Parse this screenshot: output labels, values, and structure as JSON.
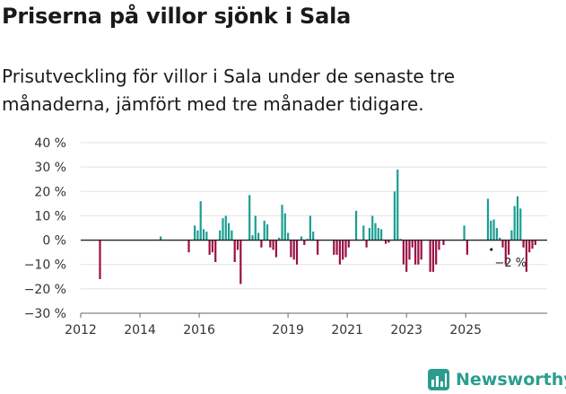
{
  "header": {
    "title": "Priserna på villor sjönk i Sala",
    "subtitle": "Prisutveckling för villor i Sala under de senaste tre månaderna, jämfört med tre månader tidigare."
  },
  "brand": {
    "name": "Newsworthy"
  },
  "colors": {
    "positive": "#1a9e92",
    "negative": "#9c0e44",
    "grid": "#e2e2e2",
    "zero": "#222222"
  },
  "chart_data": {
    "type": "bar",
    "title": "Priserna på villor sjönk i Sala",
    "ylabel": "",
    "xlabel": "",
    "ylim": [
      -30,
      40
    ],
    "yticks": [
      40,
      30,
      20,
      10,
      0,
      -10,
      -20,
      -30
    ],
    "ytick_labels": [
      "40 %",
      "30 %",
      "20 %",
      "10 %",
      "0 %",
      "−10 %",
      "−20 %",
      "−30 %"
    ],
    "xticks": [
      2012,
      2014,
      2016,
      2019,
      2021,
      2023,
      2025
    ],
    "xtick_labels": [
      "2012",
      "2014",
      "2016",
      "2019",
      "2021",
      "2023",
      "2025"
    ],
    "annotation": {
      "label": "−2 %",
      "x": 2025.85,
      "y": -2
    },
    "series": [
      {
        "name": "Prisutveckling (%)",
        "points": [
          [
            2012.65,
            -16
          ],
          [
            2014.7,
            1.5
          ],
          [
            2015.65,
            -5
          ],
          [
            2015.85,
            6
          ],
          [
            2015.95,
            4
          ],
          [
            2016.05,
            16
          ],
          [
            2016.15,
            4.5
          ],
          [
            2016.25,
            3.5
          ],
          [
            2016.35,
            -6
          ],
          [
            2016.45,
            -5
          ],
          [
            2016.55,
            -9
          ],
          [
            2016.7,
            4
          ],
          [
            2016.8,
            9
          ],
          [
            2016.9,
            10
          ],
          [
            2017.0,
            7
          ],
          [
            2017.1,
            4
          ],
          [
            2017.2,
            -9
          ],
          [
            2017.3,
            -4
          ],
          [
            2017.4,
            -18
          ],
          [
            2017.7,
            18.5
          ],
          [
            2017.8,
            2
          ],
          [
            2017.9,
            10
          ],
          [
            2018.0,
            3
          ],
          [
            2018.1,
            -3
          ],
          [
            2018.2,
            8
          ],
          [
            2018.3,
            6.5
          ],
          [
            2018.4,
            -3
          ],
          [
            2018.5,
            -4
          ],
          [
            2018.6,
            -7
          ],
          [
            2018.7,
            1
          ],
          [
            2018.8,
            14.5
          ],
          [
            2018.9,
            11
          ],
          [
            2019.0,
            3
          ],
          [
            2019.1,
            -7
          ],
          [
            2019.2,
            -8
          ],
          [
            2019.3,
            -10
          ],
          [
            2019.45,
            1.5
          ],
          [
            2019.55,
            -2
          ],
          [
            2019.65,
            0.5
          ],
          [
            2019.75,
            10
          ],
          [
            2019.85,
            3.5
          ],
          [
            2020.0,
            -6
          ],
          [
            2020.55,
            -6
          ],
          [
            2020.65,
            -6
          ],
          [
            2020.75,
            -10
          ],
          [
            2020.85,
            -8
          ],
          [
            2020.95,
            -7
          ],
          [
            2021.05,
            -3
          ],
          [
            2021.3,
            12
          ],
          [
            2021.55,
            6
          ],
          [
            2021.65,
            -3
          ],
          [
            2021.75,
            5
          ],
          [
            2021.85,
            10
          ],
          [
            2021.95,
            7
          ],
          [
            2022.05,
            5
          ],
          [
            2022.15,
            4.5
          ],
          [
            2022.3,
            -1.5
          ],
          [
            2022.4,
            -1
          ],
          [
            2022.6,
            20
          ],
          [
            2022.7,
            29
          ],
          [
            2022.8,
            0.5
          ],
          [
            2022.9,
            -10
          ],
          [
            2023.0,
            -13
          ],
          [
            2023.1,
            -8
          ],
          [
            2023.2,
            -3
          ],
          [
            2023.3,
            -10
          ],
          [
            2023.4,
            -10
          ],
          [
            2023.5,
            -8
          ],
          [
            2023.8,
            -13
          ],
          [
            2023.9,
            -13
          ],
          [
            2024.0,
            -10
          ],
          [
            2024.1,
            -4
          ],
          [
            2024.25,
            -2
          ],
          [
            2024.95,
            6
          ],
          [
            2025.05,
            -6
          ],
          [
            2025.75,
            17
          ],
          [
            2025.85,
            8
          ],
          [
            2025.95,
            8.5
          ],
          [
            2026.05,
            5
          ],
          [
            2026.15,
            1
          ],
          [
            2026.25,
            -3
          ],
          [
            2026.35,
            -10
          ],
          [
            2026.45,
            -6
          ],
          [
            2026.55,
            4
          ],
          [
            2026.65,
            14
          ],
          [
            2026.75,
            18
          ],
          [
            2026.85,
            13
          ],
          [
            2026.95,
            -3
          ],
          [
            2027.05,
            -13
          ],
          [
            2027.15,
            -5
          ],
          [
            2027.25,
            -3.5
          ],
          [
            2027.35,
            -2
          ]
        ]
      }
    ]
  }
}
